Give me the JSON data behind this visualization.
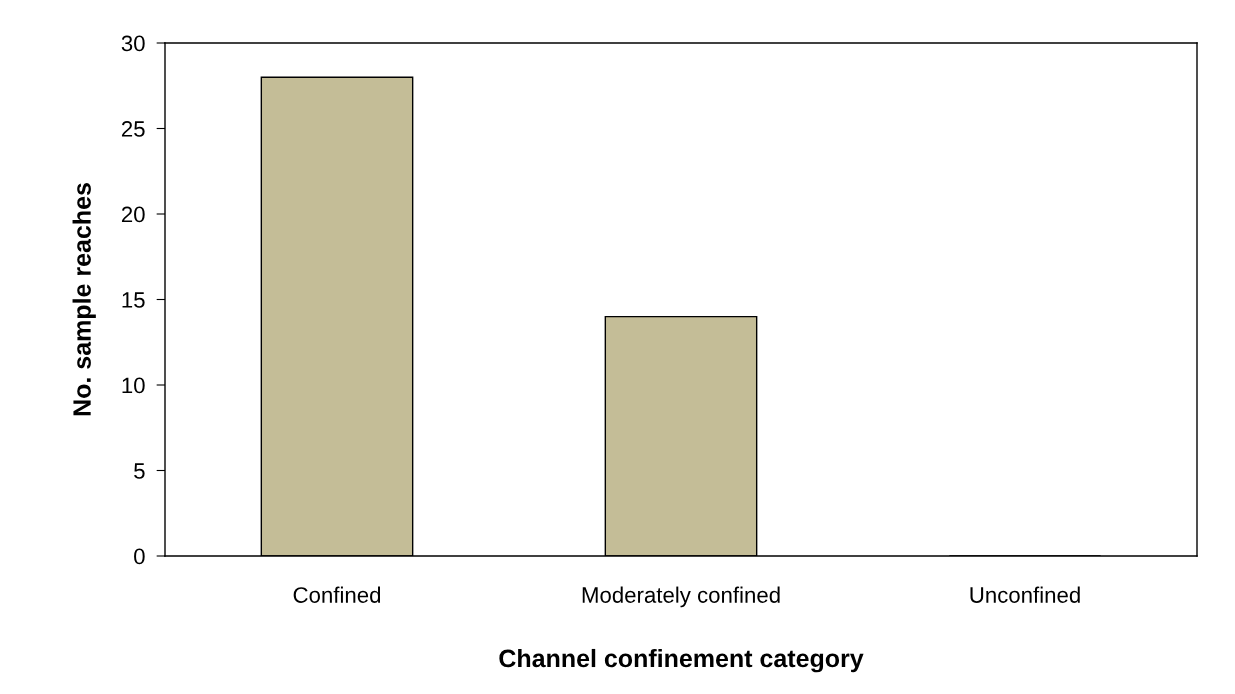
{
  "chart_data": {
    "type": "bar",
    "xlabel": "Channel confinement category",
    "ylabel": "No. sample reaches",
    "categories": [
      "Confined",
      "Moderately confined",
      "Unconfined"
    ],
    "values": [
      28,
      14,
      0
    ],
    "color": "#c4bd97",
    "ylim": [
      0,
      30
    ],
    "yticks": [
      0,
      5,
      10,
      15,
      20,
      25,
      30
    ],
    "grid": false
  }
}
